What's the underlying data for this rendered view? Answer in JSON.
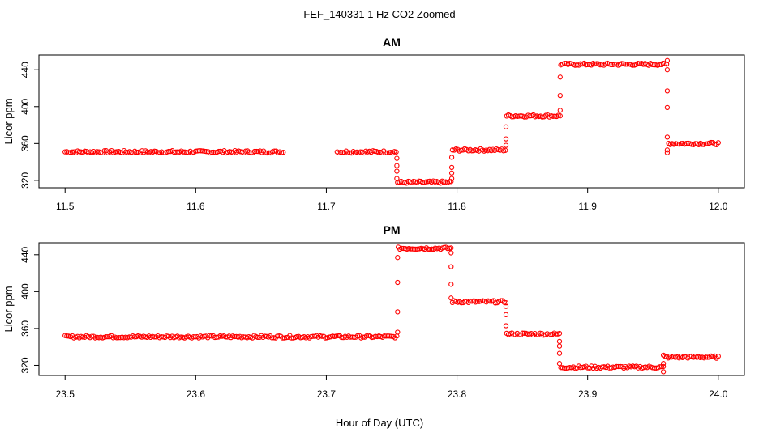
{
  "figure": {
    "title": "FEF_140331  1 Hz CO2 Zoomed",
    "xlabel": "Hour of Day (UTC)"
  },
  "chart_data": [
    {
      "type": "scatter",
      "title": "AM",
      "ylabel": "Licor ppm",
      "xlim": [
        11.5,
        12.0
      ],
      "ylim": [
        312,
        456
      ],
      "xticks": [
        "11.5",
        "11.6",
        "11.7",
        "11.8",
        "11.9",
        "12.0"
      ],
      "yticks": [
        "320",
        "360",
        "400",
        "440"
      ],
      "grid": false,
      "marker_color": "#ff0000",
      "segments": [
        {
          "x": [
            11.5,
            11.667
          ],
          "y": 351
        },
        {
          "x": [
            11.7083,
            11.7535
          ],
          "y": 351
        },
        {
          "x": [
            11.7545,
            11.7955
          ],
          "y": 318
        },
        {
          "x": [
            11.7965,
            11.837
          ],
          "y": 353
        },
        {
          "x": [
            11.838,
            11.879
          ],
          "y": 390
        },
        {
          "x": [
            11.8795,
            11.9605
          ],
          "y": 446
        },
        {
          "x": [
            11.962,
            12.0
          ],
          "y": 360
        }
      ],
      "transitions": [
        {
          "x": 11.754,
          "y": [
            344,
            336,
            330,
            322
          ]
        },
        {
          "x": 11.796,
          "y": [
            322,
            328,
            334,
            345
          ]
        },
        {
          "x": 11.8375,
          "y": [
            358,
            365,
            378
          ]
        },
        {
          "x": 11.879,
          "y": [
            396,
            412,
            432
          ]
        },
        {
          "x": 11.961,
          "y": [
            450,
            440,
            417,
            399,
            367,
            350,
            353
          ]
        }
      ]
    },
    {
      "type": "scatter",
      "title": "PM",
      "ylabel": "Licor ppm",
      "xlim": [
        23.5,
        24.0
      ],
      "ylim": [
        309,
        453
      ],
      "xticks": [
        "23.5",
        "23.6",
        "23.7",
        "23.8",
        "23.9",
        "24.0"
      ],
      "yticks": [
        "320",
        "360",
        "400",
        "440"
      ],
      "grid": false,
      "marker_color": "#ff0000",
      "segments": [
        {
          "x": [
            23.5,
            23.754
          ],
          "y": 351
        },
        {
          "x": [
            23.755,
            23.7955
          ],
          "y": 447
        },
        {
          "x": [
            23.7965,
            23.8375
          ],
          "y": 389
        },
        {
          "x": [
            23.838,
            23.8785
          ],
          "y": 354
        },
        {
          "x": [
            23.8795,
            23.958
          ],
          "y": 318
        },
        {
          "x": [
            23.959,
            24.0
          ],
          "y": 329
        }
      ],
      "transitions": [
        {
          "x": 23.7545,
          "y": [
            356,
            378,
            410,
            437
          ]
        },
        {
          "x": 23.7955,
          "y": [
            442,
            427,
            408,
            393
          ]
        },
        {
          "x": 23.8375,
          "y": [
            384,
            375,
            363
          ]
        },
        {
          "x": 23.8785,
          "y": [
            346,
            341,
            333,
            322
          ]
        },
        {
          "x": 23.958,
          "y": [
            313,
            322,
            331
          ]
        }
      ]
    }
  ]
}
